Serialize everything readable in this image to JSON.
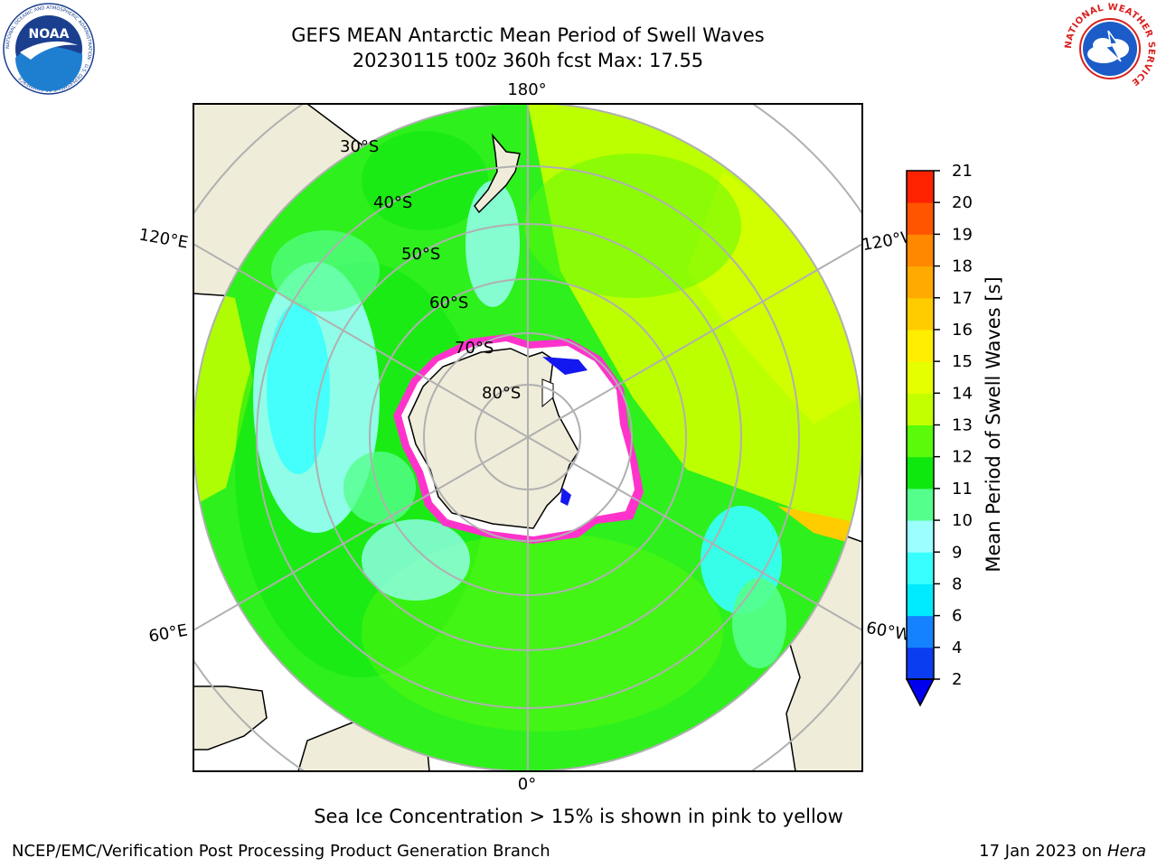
{
  "header": {
    "title_line1": "GEFS MEAN Antarctic Mean Period of Swell Waves",
    "title_line2": "20230115 t00z 360h fcst   Max: 17.55"
  },
  "logos": {
    "left": {
      "name": "noaa-logo",
      "text": "NOAA",
      "ring_text": "NATIONAL OCEANIC AND ATMOSPHERIC ADMINISTRATION · U.S. DEPARTMENT OF COMMERCE"
    },
    "right": {
      "name": "nws-logo",
      "ring_text": "NATIONAL WEATHER SERVICE"
    }
  },
  "map": {
    "projection": "south-polar-stereographic",
    "longitude_labels": {
      "top": "180°",
      "bottom": "0°",
      "upper_left": "120°E",
      "upper_right": "120°W",
      "lower_left": "60°E",
      "lower_right": "60°W"
    },
    "latitude_labels": [
      "30°S",
      "40°S",
      "50°S",
      "60°S",
      "70°S",
      "80°S"
    ],
    "colors": {
      "land": "#efecd9",
      "ice_free_land": "#ffffff",
      "grid": "#b0b0b0",
      "sea_ice_edge": "#ff33cc"
    }
  },
  "colorbar": {
    "label": "Mean Period of Swell Waves [s]",
    "ticks": [
      "2",
      "4",
      "6",
      "8",
      "9",
      "10",
      "11",
      "12",
      "13",
      "14",
      "15",
      "16",
      "17",
      "18",
      "19",
      "20",
      "21"
    ],
    "colors": [
      "#0a3cf0",
      "#1482ff",
      "#00ebff",
      "#37ffff",
      "#9cffff",
      "#55ff8c",
      "#0fe80f",
      "#5afa0a",
      "#c4ff00",
      "#e6ff00",
      "#ffee00",
      "#ffcc00",
      "#ffaa00",
      "#ff8800",
      "#ff5500",
      "#ff2200"
    ],
    "extend_min_color": "#0000ee"
  },
  "caption": "Sea Ice Concentration > 15% is shown in pink to yellow",
  "footer": {
    "left": "NCEP/EMC/Verification Post Processing Product Generation Branch",
    "right_date": "17 Jan 2023 on",
    "right_host": "Hera"
  }
}
